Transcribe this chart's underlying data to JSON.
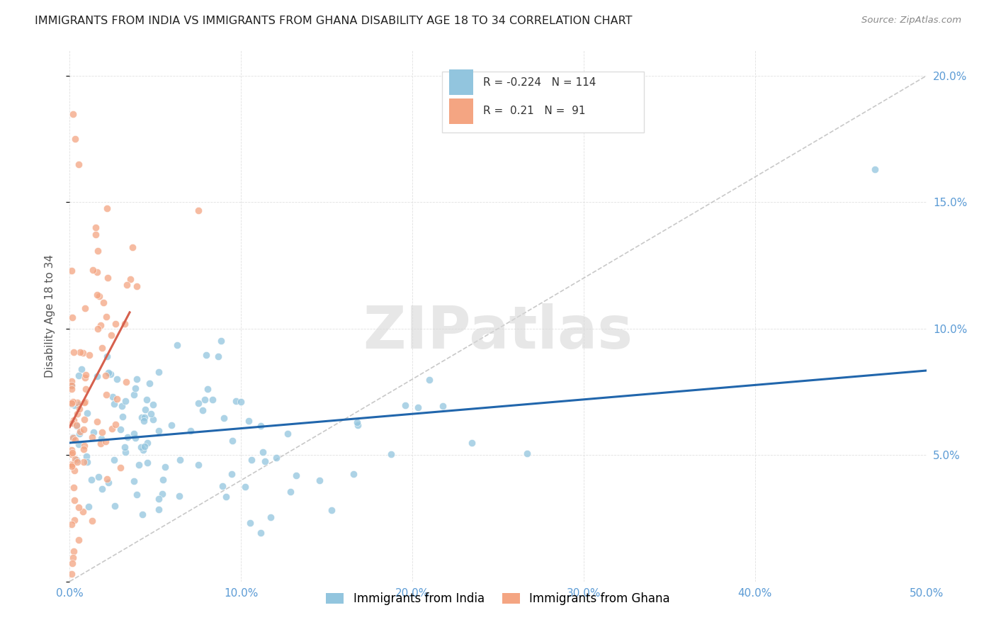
{
  "title": "IMMIGRANTS FROM INDIA VS IMMIGRANTS FROM GHANA DISABILITY AGE 18 TO 34 CORRELATION CHART",
  "source": "Source: ZipAtlas.com",
  "ylabel": "Disability Age 18 to 34",
  "xlim": [
    0.0,
    0.5
  ],
  "ylim": [
    0.0,
    0.21
  ],
  "xtick_vals": [
    0.0,
    0.1,
    0.2,
    0.3,
    0.4,
    0.5
  ],
  "ytick_vals": [
    0.0,
    0.05,
    0.1,
    0.15,
    0.2
  ],
  "india_color": "#92c5de",
  "ghana_color": "#f4a582",
  "india_line_color": "#2166ac",
  "ghana_line_color": "#d6604d",
  "india_R": -0.224,
  "india_N": 114,
  "ghana_R": 0.21,
  "ghana_N": 91,
  "legend_india": "Immigrants from India",
  "legend_ghana": "Immigrants from Ghana",
  "watermark": "ZIPatlas",
  "tick_color": "#5b9bd5",
  "ref_line_color": "#bbbbbb"
}
